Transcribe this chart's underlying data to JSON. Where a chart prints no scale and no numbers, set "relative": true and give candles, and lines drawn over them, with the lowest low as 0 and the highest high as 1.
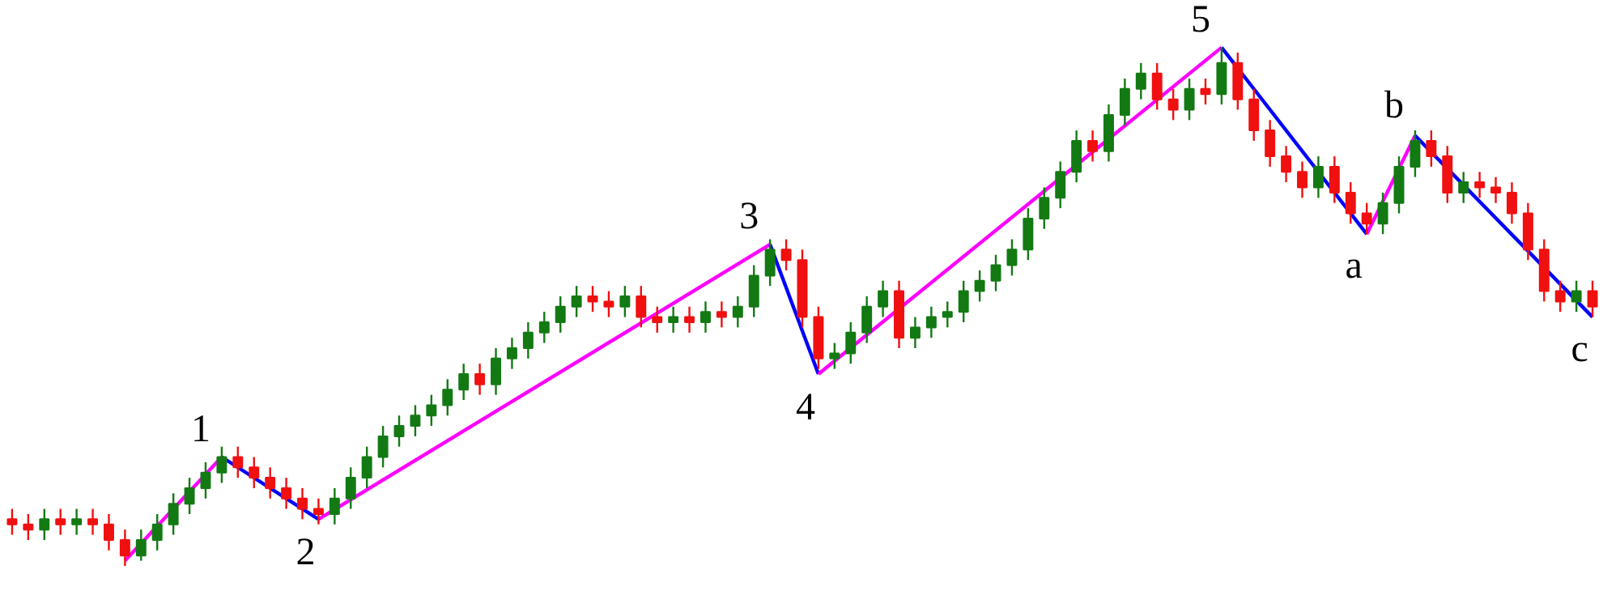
{
  "chart_data": {
    "type": "candlestick",
    "relative": true,
    "tick_labels": false,
    "grid": false,
    "categories": [
      null,
      null,
      null,
      null,
      null,
      null,
      null,
      null,
      null,
      null,
      null,
      null,
      null,
      null,
      null,
      null,
      null,
      null,
      null,
      null,
      null,
      null,
      null,
      null,
      null,
      null,
      null,
      null,
      null,
      null,
      null,
      null,
      null,
      null,
      null,
      null,
      null,
      null,
      null,
      null,
      null,
      null,
      null,
      null,
      null,
      null,
      null,
      null,
      null,
      null,
      null,
      null,
      null,
      null,
      null,
      null,
      null,
      null,
      null,
      null,
      null,
      null,
      null,
      null,
      null,
      null,
      null,
      null,
      null,
      null,
      null,
      null,
      null,
      null,
      null,
      null,
      null,
      null,
      null,
      null,
      null,
      null,
      null,
      null,
      null,
      null,
      null,
      null,
      null,
      null,
      null,
      null,
      null,
      null,
      null,
      null,
      null,
      null,
      null
    ],
    "ohlc": [
      [
        0.09,
        0.11,
        0.06,
        0.08
      ],
      [
        0.08,
        0.1,
        0.05,
        0.07
      ],
      [
        0.07,
        0.11,
        0.05,
        0.09
      ],
      [
        0.09,
        0.11,
        0.06,
        0.08
      ],
      [
        0.08,
        0.11,
        0.06,
        0.09
      ],
      [
        0.09,
        0.11,
        0.06,
        0.08
      ],
      [
        0.08,
        0.1,
        0.03,
        0.05
      ],
      [
        0.05,
        0.07,
        0.0,
        0.02
      ],
      [
        0.02,
        0.07,
        0.01,
        0.05
      ],
      [
        0.05,
        0.1,
        0.03,
        0.08
      ],
      [
        0.08,
        0.14,
        0.06,
        0.12
      ],
      [
        0.12,
        0.17,
        0.1,
        0.15
      ],
      [
        0.15,
        0.2,
        0.13,
        0.18
      ],
      [
        0.18,
        0.23,
        0.16,
        0.21
      ],
      [
        0.21,
        0.23,
        0.17,
        0.19
      ],
      [
        0.19,
        0.21,
        0.15,
        0.17
      ],
      [
        0.17,
        0.19,
        0.13,
        0.15
      ],
      [
        0.15,
        0.17,
        0.11,
        0.13
      ],
      [
        0.13,
        0.15,
        0.09,
        0.11
      ],
      [
        0.11,
        0.13,
        0.08,
        0.1
      ],
      [
        0.1,
        0.15,
        0.08,
        0.13
      ],
      [
        0.13,
        0.19,
        0.11,
        0.17
      ],
      [
        0.17,
        0.23,
        0.15,
        0.21
      ],
      [
        0.21,
        0.27,
        0.19,
        0.25
      ],
      [
        0.25,
        0.29,
        0.23,
        0.27
      ],
      [
        0.27,
        0.31,
        0.25,
        0.29
      ],
      [
        0.29,
        0.33,
        0.27,
        0.31
      ],
      [
        0.31,
        0.36,
        0.29,
        0.34
      ],
      [
        0.34,
        0.39,
        0.32,
        0.37
      ],
      [
        0.37,
        0.39,
        0.33,
        0.35
      ],
      [
        0.35,
        0.42,
        0.33,
        0.4
      ],
      [
        0.4,
        0.44,
        0.38,
        0.42
      ],
      [
        0.42,
        0.47,
        0.4,
        0.45
      ],
      [
        0.45,
        0.49,
        0.43,
        0.47
      ],
      [
        0.47,
        0.52,
        0.45,
        0.5
      ],
      [
        0.5,
        0.54,
        0.48,
        0.52
      ],
      [
        0.52,
        0.54,
        0.49,
        0.51
      ],
      [
        0.51,
        0.53,
        0.48,
        0.5
      ],
      [
        0.5,
        0.54,
        0.48,
        0.52
      ],
      [
        0.52,
        0.54,
        0.46,
        0.48
      ],
      [
        0.48,
        0.5,
        0.45,
        0.47
      ],
      [
        0.47,
        0.5,
        0.45,
        0.48
      ],
      [
        0.48,
        0.5,
        0.45,
        0.47
      ],
      [
        0.47,
        0.51,
        0.45,
        0.49
      ],
      [
        0.49,
        0.51,
        0.46,
        0.48
      ],
      [
        0.48,
        0.52,
        0.46,
        0.5
      ],
      [
        0.5,
        0.58,
        0.48,
        0.56
      ],
      [
        0.56,
        0.63,
        0.54,
        0.61
      ],
      [
        0.61,
        0.63,
        0.57,
        0.59
      ],
      [
        0.59,
        0.61,
        0.46,
        0.48
      ],
      [
        0.48,
        0.5,
        0.38,
        0.4
      ],
      [
        0.4,
        0.43,
        0.38,
        0.41
      ],
      [
        0.41,
        0.47,
        0.39,
        0.45
      ],
      [
        0.45,
        0.52,
        0.43,
        0.5
      ],
      [
        0.5,
        0.55,
        0.48,
        0.53
      ],
      [
        0.53,
        0.55,
        0.42,
        0.44
      ],
      [
        0.44,
        0.48,
        0.42,
        0.46
      ],
      [
        0.46,
        0.5,
        0.44,
        0.48
      ],
      [
        0.48,
        0.51,
        0.46,
        0.49
      ],
      [
        0.49,
        0.55,
        0.47,
        0.53
      ],
      [
        0.53,
        0.57,
        0.51,
        0.55
      ],
      [
        0.55,
        0.6,
        0.53,
        0.58
      ],
      [
        0.58,
        0.63,
        0.56,
        0.61
      ],
      [
        0.61,
        0.69,
        0.59,
        0.67
      ],
      [
        0.67,
        0.73,
        0.65,
        0.71
      ],
      [
        0.71,
        0.78,
        0.69,
        0.76
      ],
      [
        0.76,
        0.84,
        0.74,
        0.82
      ],
      [
        0.82,
        0.84,
        0.78,
        0.8
      ],
      [
        0.8,
        0.89,
        0.78,
        0.87
      ],
      [
        0.87,
        0.94,
        0.85,
        0.92
      ],
      [
        0.92,
        0.97,
        0.9,
        0.95
      ],
      [
        0.95,
        0.97,
        0.88,
        0.9
      ],
      [
        0.9,
        0.92,
        0.86,
        0.88
      ],
      [
        0.88,
        0.94,
        0.86,
        0.92
      ],
      [
        0.92,
        0.94,
        0.89,
        0.91
      ],
      [
        0.91,
        1.0,
        0.89,
        0.97
      ],
      [
        0.97,
        0.99,
        0.88,
        0.9
      ],
      [
        0.9,
        0.92,
        0.82,
        0.84
      ],
      [
        0.84,
        0.86,
        0.77,
        0.79
      ],
      [
        0.79,
        0.81,
        0.74,
        0.76
      ],
      [
        0.76,
        0.78,
        0.71,
        0.73
      ],
      [
        0.73,
        0.79,
        0.71,
        0.77
      ],
      [
        0.77,
        0.79,
        0.7,
        0.72
      ],
      [
        0.72,
        0.74,
        0.66,
        0.68
      ],
      [
        0.68,
        0.7,
        0.64,
        0.66
      ],
      [
        0.66,
        0.72,
        0.64,
        0.7
      ],
      [
        0.7,
        0.79,
        0.68,
        0.77
      ],
      [
        0.77,
        0.84,
        0.75,
        0.82
      ],
      [
        0.82,
        0.84,
        0.77,
        0.79
      ],
      [
        0.79,
        0.81,
        0.7,
        0.72
      ],
      [
        0.72,
        0.76,
        0.7,
        0.74
      ],
      [
        0.74,
        0.76,
        0.71,
        0.73
      ],
      [
        0.73,
        0.75,
        0.7,
        0.72
      ],
      [
        0.72,
        0.74,
        0.66,
        0.68
      ],
      [
        0.68,
        0.7,
        0.59,
        0.61
      ],
      [
        0.61,
        0.63,
        0.51,
        0.53
      ],
      [
        0.53,
        0.55,
        0.49,
        0.51
      ],
      [
        0.51,
        0.55,
        0.49,
        0.53
      ],
      [
        0.53,
        0.55,
        0.48,
        0.5
      ]
    ],
    "colors": [
      "#f01010",
      "#f01010",
      "#137a13",
      "#f01010",
      "#137a13",
      "#f01010",
      "#f01010",
      "#f01010",
      "#137a13",
      "#137a13",
      "#137a13",
      "#137a13",
      "#137a13",
      "#137a13",
      "#f01010",
      "#f01010",
      "#f01010",
      "#f01010",
      "#f01010",
      "#f01010",
      "#137a13",
      "#137a13",
      "#137a13",
      "#137a13",
      "#137a13",
      "#137a13",
      "#137a13",
      "#137a13",
      "#137a13",
      "#f01010",
      "#137a13",
      "#137a13",
      "#137a13",
      "#137a13",
      "#137a13",
      "#137a13",
      "#f01010",
      "#f01010",
      "#137a13",
      "#f01010",
      "#f01010",
      "#137a13",
      "#f01010",
      "#137a13",
      "#f01010",
      "#137a13",
      "#137a13",
      "#137a13",
      "#f01010",
      "#f01010",
      "#f01010",
      "#137a13",
      "#137a13",
      "#137a13",
      "#137a13",
      "#f01010",
      "#137a13",
      "#137a13",
      "#137a13",
      "#137a13",
      "#137a13",
      "#137a13",
      "#137a13",
      "#137a13",
      "#137a13",
      "#137a13",
      "#137a13",
      "#f01010",
      "#137a13",
      "#137a13",
      "#137a13",
      "#f01010",
      "#f01010",
      "#137a13",
      "#f01010",
      "#137a13",
      "#f01010",
      "#f01010",
      "#f01010",
      "#f01010",
      "#f01010",
      "#137a13",
      "#f01010",
      "#f01010",
      "#f01010",
      "#137a13",
      "#137a13",
      "#137a13",
      "#f01010",
      "#f01010",
      "#137a13",
      "#f01010",
      "#f01010",
      "#f01010",
      "#f01010",
      "#f01010",
      "#f01010",
      "#137a13",
      "#f01010"
    ],
    "series": [
      {
        "type": "line",
        "color": "#ff00ff",
        "values": [
          null,
          null,
          null,
          null,
          null,
          null,
          null,
          0.01,
          null,
          null,
          null,
          null,
          null,
          0.21,
          null,
          null,
          null,
          null,
          null,
          null,
          null,
          null,
          null,
          null,
          null,
          null,
          null,
          null,
          null,
          null,
          null,
          null,
          null,
          null,
          null,
          null,
          null,
          null,
          null,
          null,
          null,
          null,
          null,
          null,
          null,
          null,
          null,
          null,
          null,
          null,
          null,
          null,
          null,
          null,
          null,
          null,
          null,
          null,
          null,
          null,
          null,
          null,
          null,
          null,
          null,
          null,
          null,
          null,
          null,
          null,
          null,
          null,
          null,
          null,
          null,
          null,
          null,
          null,
          null,
          null,
          null,
          null,
          null,
          null,
          null,
          null,
          null,
          null,
          null,
          null,
          null,
          null,
          null,
          null,
          null,
          null,
          null,
          null,
          null
        ]
      },
      {
        "type": "line",
        "color": "#0000ff",
        "values": [
          null,
          null,
          null,
          null,
          null,
          null,
          null,
          null,
          null,
          null,
          null,
          null,
          null,
          0.21,
          null,
          null,
          null,
          null,
          null,
          0.09,
          null,
          null,
          null,
          null,
          null,
          null,
          null,
          null,
          null,
          null,
          null,
          null,
          null,
          null,
          null,
          null,
          null,
          null,
          null,
          null,
          null,
          null,
          null,
          null,
          null,
          null,
          null,
          null,
          null,
          null,
          null,
          null,
          null,
          null,
          null,
          null,
          null,
          null,
          null,
          null,
          null,
          null,
          null,
          null,
          null,
          null,
          null,
          null,
          null,
          null,
          null,
          null,
          null,
          null,
          null,
          null,
          null,
          null,
          null,
          null,
          null,
          null,
          null,
          null,
          null,
          null,
          null,
          null,
          null,
          null,
          null,
          null,
          null,
          null,
          null,
          null,
          null,
          null,
          null
        ]
      },
      {
        "type": "line",
        "color": "#ff00ff",
        "values": [
          null,
          null,
          null,
          null,
          null,
          null,
          null,
          null,
          null,
          null,
          null,
          null,
          null,
          null,
          null,
          null,
          null,
          null,
          null,
          0.09,
          null,
          null,
          null,
          null,
          null,
          null,
          null,
          null,
          null,
          null,
          null,
          null,
          null,
          null,
          null,
          null,
          null,
          null,
          null,
          null,
          null,
          null,
          null,
          null,
          null,
          null,
          null,
          0.62,
          null,
          null,
          null,
          null,
          null,
          null,
          null,
          null,
          null,
          null,
          null,
          null,
          null,
          null,
          null,
          null,
          null,
          null,
          null,
          null,
          null,
          null,
          null,
          null,
          null,
          null,
          null,
          null,
          null,
          null,
          null,
          null,
          null,
          null,
          null,
          null,
          null,
          null,
          null,
          null,
          null,
          null,
          null,
          null,
          null,
          null,
          null,
          null,
          null,
          null,
          null
        ]
      },
      {
        "type": "line",
        "color": "#0000ff",
        "values": [
          null,
          null,
          null,
          null,
          null,
          null,
          null,
          null,
          null,
          null,
          null,
          null,
          null,
          null,
          null,
          null,
          null,
          null,
          null,
          null,
          null,
          null,
          null,
          null,
          null,
          null,
          null,
          null,
          null,
          null,
          null,
          null,
          null,
          null,
          null,
          null,
          null,
          null,
          null,
          null,
          null,
          null,
          null,
          null,
          null,
          null,
          null,
          0.62,
          null,
          null,
          0.37,
          null,
          null,
          null,
          null,
          null,
          null,
          null,
          null,
          null,
          null,
          null,
          null,
          null,
          null,
          null,
          null,
          null,
          null,
          null,
          null,
          null,
          null,
          null,
          null,
          null,
          null,
          null,
          null,
          null,
          null,
          null,
          null,
          null,
          null,
          null,
          null,
          null,
          null,
          null,
          null,
          null,
          null,
          null,
          null,
          null,
          null,
          null,
          null
        ]
      },
      {
        "type": "line",
        "color": "#ff00ff",
        "values": [
          null,
          null,
          null,
          null,
          null,
          null,
          null,
          null,
          null,
          null,
          null,
          null,
          null,
          null,
          null,
          null,
          null,
          null,
          null,
          null,
          null,
          null,
          null,
          null,
          null,
          null,
          null,
          null,
          null,
          null,
          null,
          null,
          null,
          null,
          null,
          null,
          null,
          null,
          null,
          null,
          null,
          null,
          null,
          null,
          null,
          null,
          null,
          null,
          null,
          null,
          0.37,
          null,
          null,
          null,
          null,
          null,
          null,
          null,
          null,
          null,
          null,
          null,
          null,
          null,
          null,
          null,
          null,
          null,
          null,
          null,
          null,
          null,
          null,
          null,
          null,
          1.0,
          null,
          null,
          null,
          null,
          null,
          null,
          null,
          null,
          null,
          null,
          null,
          null,
          null,
          null,
          null,
          null,
          null,
          null,
          null,
          null,
          null,
          null,
          null
        ]
      },
      {
        "type": "line",
        "color": "#0000ff",
        "values": [
          null,
          null,
          null,
          null,
          null,
          null,
          null,
          null,
          null,
          null,
          null,
          null,
          null,
          null,
          null,
          null,
          null,
          null,
          null,
          null,
          null,
          null,
          null,
          null,
          null,
          null,
          null,
          null,
          null,
          null,
          null,
          null,
          null,
          null,
          null,
          null,
          null,
          null,
          null,
          null,
          null,
          null,
          null,
          null,
          null,
          null,
          null,
          null,
          null,
          null,
          null,
          null,
          null,
          null,
          null,
          null,
          null,
          null,
          null,
          null,
          null,
          null,
          null,
          null,
          null,
          null,
          null,
          null,
          null,
          null,
          null,
          null,
          null,
          null,
          null,
          1.0,
          null,
          null,
          null,
          null,
          null,
          null,
          null,
          null,
          0.64,
          null,
          null,
          null,
          null,
          null,
          null,
          null,
          null,
          null,
          null,
          null,
          null,
          null,
          null
        ]
      },
      {
        "type": "line",
        "color": "#ff00ff",
        "values": [
          null,
          null,
          null,
          null,
          null,
          null,
          null,
          null,
          null,
          null,
          null,
          null,
          null,
          null,
          null,
          null,
          null,
          null,
          null,
          null,
          null,
          null,
          null,
          null,
          null,
          null,
          null,
          null,
          null,
          null,
          null,
          null,
          null,
          null,
          null,
          null,
          null,
          null,
          null,
          null,
          null,
          null,
          null,
          null,
          null,
          null,
          null,
          null,
          null,
          null,
          null,
          null,
          null,
          null,
          null,
          null,
          null,
          null,
          null,
          null,
          null,
          null,
          null,
          null,
          null,
          null,
          null,
          null,
          null,
          null,
          null,
          null,
          null,
          null,
          null,
          null,
          null,
          null,
          null,
          null,
          null,
          null,
          null,
          null,
          0.64,
          null,
          null,
          0.83,
          null,
          null,
          null,
          null,
          null,
          null,
          null,
          null,
          null,
          null,
          null
        ]
      },
      {
        "type": "line",
        "color": "#0000ff",
        "values": [
          null,
          null,
          null,
          null,
          null,
          null,
          null,
          null,
          null,
          null,
          null,
          null,
          null,
          null,
          null,
          null,
          null,
          null,
          null,
          null,
          null,
          null,
          null,
          null,
          null,
          null,
          null,
          null,
          null,
          null,
          null,
          null,
          null,
          null,
          null,
          null,
          null,
          null,
          null,
          null,
          null,
          null,
          null,
          null,
          null,
          null,
          null,
          null,
          null,
          null,
          null,
          null,
          null,
          null,
          null,
          null,
          null,
          null,
          null,
          null,
          null,
          null,
          null,
          null,
          null,
          null,
          null,
          null,
          null,
          null,
          null,
          null,
          null,
          null,
          null,
          null,
          null,
          null,
          null,
          null,
          null,
          null,
          null,
          null,
          null,
          null,
          null,
          0.83,
          null,
          null,
          null,
          null,
          null,
          null,
          null,
          null,
          null,
          null,
          0.48
        ]
      }
    ],
    "annotations": [
      "1",
      "2",
      "3",
      "4",
      "5",
      "a",
      "b",
      "c"
    ]
  }
}
